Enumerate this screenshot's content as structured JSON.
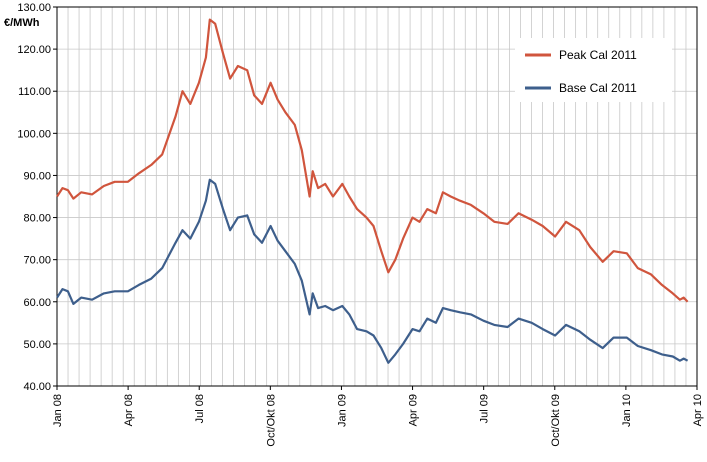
{
  "chart_data": {
    "type": "line",
    "title": "",
    "xlabel": "",
    "ylabel": "€/MWh",
    "ylim": [
      40,
      130
    ],
    "yticks": [
      "130.00",
      "120.00",
      "110.00",
      "100.00",
      "90.00",
      "80.00",
      "70.00",
      "60.00",
      "50.00",
      "40.00"
    ],
    "xtick_labels": [
      "Jan 08",
      "Apr 08",
      "Jul 08",
      "Oct/Okt 08",
      "Jan 09",
      "Apr 09",
      "Jul 09",
      "Oct/Okt 09",
      "Jan 10",
      "Apr 10"
    ],
    "xlim": [
      "2008-01-01",
      "2010-04-01"
    ],
    "grid": true,
    "legend_position": "top-right",
    "series": [
      {
        "name": "Peak Cal 2011",
        "color": "#d0553d",
        "points": [
          [
            "2008-01-01",
            85
          ],
          [
            "2008-01-08",
            87
          ],
          [
            "2008-01-15",
            86.5
          ],
          [
            "2008-01-22",
            84.5
          ],
          [
            "2008-02-01",
            86
          ],
          [
            "2008-02-15",
            85.5
          ],
          [
            "2008-03-01",
            87.5
          ],
          [
            "2008-03-15",
            88.5
          ],
          [
            "2008-04-01",
            88.5
          ],
          [
            "2008-04-15",
            90.5
          ],
          [
            "2008-05-01",
            92.5
          ],
          [
            "2008-05-15",
            95
          ],
          [
            "2008-06-01",
            104
          ],
          [
            "2008-06-10",
            110
          ],
          [
            "2008-06-20",
            107
          ],
          [
            "2008-07-01",
            112
          ],
          [
            "2008-07-10",
            118
          ],
          [
            "2008-07-15",
            127
          ],
          [
            "2008-07-22",
            126
          ],
          [
            "2008-08-01",
            119
          ],
          [
            "2008-08-10",
            113
          ],
          [
            "2008-08-20",
            116
          ],
          [
            "2008-09-01",
            115
          ],
          [
            "2008-09-10",
            109
          ],
          [
            "2008-09-20",
            107
          ],
          [
            "2008-10-01",
            112
          ],
          [
            "2008-10-10",
            108
          ],
          [
            "2008-10-20",
            105
          ],
          [
            "2008-11-01",
            102
          ],
          [
            "2008-11-10",
            96
          ],
          [
            "2008-11-20",
            85
          ],
          [
            "2008-11-24",
            91
          ],
          [
            "2008-12-01",
            87
          ],
          [
            "2008-12-10",
            88
          ],
          [
            "2008-12-20",
            85
          ],
          [
            "2009-01-01",
            88
          ],
          [
            "2009-01-10",
            85
          ],
          [
            "2009-01-20",
            82
          ],
          [
            "2009-02-01",
            80
          ],
          [
            "2009-02-10",
            78
          ],
          [
            "2009-02-20",
            72
          ],
          [
            "2009-03-01",
            67
          ],
          [
            "2009-03-10",
            70
          ],
          [
            "2009-03-20",
            75
          ],
          [
            "2009-04-01",
            80
          ],
          [
            "2009-04-10",
            79
          ],
          [
            "2009-04-20",
            82
          ],
          [
            "2009-05-01",
            81
          ],
          [
            "2009-05-10",
            86
          ],
          [
            "2009-05-20",
            85
          ],
          [
            "2009-06-01",
            84
          ],
          [
            "2009-06-15",
            83
          ],
          [
            "2009-07-01",
            81
          ],
          [
            "2009-07-15",
            79
          ],
          [
            "2009-08-01",
            78.5
          ],
          [
            "2009-08-15",
            81
          ],
          [
            "2009-09-01",
            79.5
          ],
          [
            "2009-09-15",
            78
          ],
          [
            "2009-10-01",
            75.5
          ],
          [
            "2009-10-15",
            79
          ],
          [
            "2009-11-01",
            77
          ],
          [
            "2009-11-15",
            73
          ],
          [
            "2009-12-01",
            69.5
          ],
          [
            "2009-12-15",
            72
          ],
          [
            "2010-01-01",
            71.5
          ],
          [
            "2010-01-15",
            68
          ],
          [
            "2010-02-01",
            66.5
          ],
          [
            "2010-02-15",
            64
          ],
          [
            "2010-03-01",
            62
          ],
          [
            "2010-03-10",
            60.5
          ],
          [
            "2010-03-15",
            61
          ],
          [
            "2010-03-20",
            60
          ]
        ]
      },
      {
        "name": "Base Cal 2011",
        "color": "#3e5f8c",
        "points": [
          [
            "2008-01-01",
            61
          ],
          [
            "2008-01-08",
            63
          ],
          [
            "2008-01-15",
            62.5
          ],
          [
            "2008-01-22",
            59.5
          ],
          [
            "2008-02-01",
            61
          ],
          [
            "2008-02-15",
            60.5
          ],
          [
            "2008-03-01",
            62
          ],
          [
            "2008-03-15",
            62.5
          ],
          [
            "2008-04-01",
            62.5
          ],
          [
            "2008-04-15",
            64
          ],
          [
            "2008-05-01",
            65.5
          ],
          [
            "2008-05-15",
            68
          ],
          [
            "2008-06-01",
            74
          ],
          [
            "2008-06-10",
            77
          ],
          [
            "2008-06-20",
            75
          ],
          [
            "2008-07-01",
            79
          ],
          [
            "2008-07-10",
            84
          ],
          [
            "2008-07-15",
            89
          ],
          [
            "2008-07-22",
            88
          ],
          [
            "2008-08-01",
            82
          ],
          [
            "2008-08-10",
            77
          ],
          [
            "2008-08-20",
            80
          ],
          [
            "2008-09-01",
            80.5
          ],
          [
            "2008-09-10",
            76
          ],
          [
            "2008-09-20",
            74
          ],
          [
            "2008-10-01",
            78
          ],
          [
            "2008-10-10",
            74.5
          ],
          [
            "2008-10-20",
            72
          ],
          [
            "2008-11-01",
            69
          ],
          [
            "2008-11-10",
            65
          ],
          [
            "2008-11-20",
            57
          ],
          [
            "2008-11-24",
            62
          ],
          [
            "2008-12-01",
            58.5
          ],
          [
            "2008-12-10",
            59
          ],
          [
            "2008-12-20",
            58
          ],
          [
            "2009-01-01",
            59
          ],
          [
            "2009-01-10",
            57
          ],
          [
            "2009-01-20",
            53.5
          ],
          [
            "2009-02-01",
            53
          ],
          [
            "2009-02-10",
            52
          ],
          [
            "2009-02-20",
            49
          ],
          [
            "2009-03-01",
            45.5
          ],
          [
            "2009-03-10",
            47.5
          ],
          [
            "2009-03-20",
            50
          ],
          [
            "2009-04-01",
            53.5
          ],
          [
            "2009-04-10",
            53
          ],
          [
            "2009-04-20",
            56
          ],
          [
            "2009-05-01",
            55
          ],
          [
            "2009-05-10",
            58.5
          ],
          [
            "2009-05-20",
            58
          ],
          [
            "2009-06-01",
            57.5
          ],
          [
            "2009-06-15",
            57
          ],
          [
            "2009-07-01",
            55.5
          ],
          [
            "2009-07-15",
            54.5
          ],
          [
            "2009-08-01",
            54
          ],
          [
            "2009-08-15",
            56
          ],
          [
            "2009-09-01",
            55
          ],
          [
            "2009-09-15",
            53.5
          ],
          [
            "2009-10-01",
            52
          ],
          [
            "2009-10-15",
            54.5
          ],
          [
            "2009-11-01",
            53
          ],
          [
            "2009-11-15",
            51
          ],
          [
            "2009-12-01",
            49
          ],
          [
            "2009-12-15",
            51.5
          ],
          [
            "2010-01-01",
            51.5
          ],
          [
            "2010-01-15",
            49.5
          ],
          [
            "2010-02-01",
            48.5
          ],
          [
            "2010-02-15",
            47.5
          ],
          [
            "2010-03-01",
            47
          ],
          [
            "2010-03-10",
            46
          ],
          [
            "2010-03-15",
            46.5
          ],
          [
            "2010-03-20",
            46
          ]
        ]
      }
    ]
  }
}
